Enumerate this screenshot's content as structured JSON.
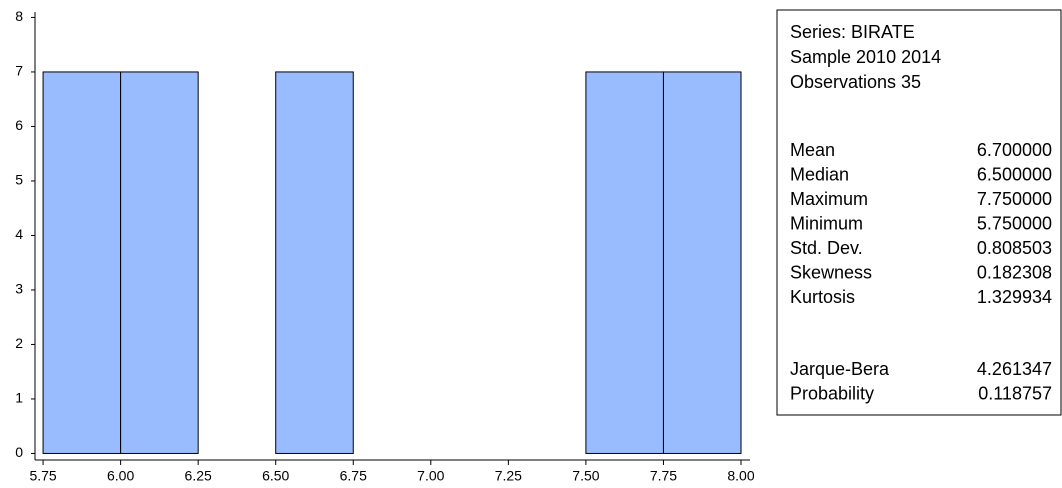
{
  "chart_data": {
    "type": "histogram",
    "bins": [
      5.75,
      6.0,
      6.25,
      6.5,
      6.75,
      7.0,
      7.25,
      7.5,
      7.75,
      8.0
    ],
    "values": [
      7,
      7,
      0,
      7,
      0,
      0,
      0,
      7,
      7
    ],
    "color": "#99bbff",
    "xlim": [
      5.724,
      8.029
    ],
    "ylim": [
      -0.12,
      8.1
    ],
    "xticks": [
      5.75,
      {
        "value": 6.0,
        "label": "6.00"
      },
      6.25,
      {
        "value": 6.5,
        "label": "6.50"
      },
      6.75,
      {
        "value": 7.0,
        "label": "7.00"
      },
      7.25,
      {
        "value": 7.5,
        "label": "7.50"
      },
      7.75,
      {
        "value": 8.0,
        "label": "8.00"
      }
    ],
    "yticks": [
      0,
      1,
      2,
      3,
      4,
      5,
      6,
      7,
      8
    ],
    "stats_header": [
      "Series: BIRATE",
      "Sample 2010 2014",
      "Observations 35"
    ],
    "stats": [
      [
        "Mean",
        "6.700000"
      ],
      [
        "Median",
        "6.500000"
      ],
      [
        "Maximum",
        "7.750000"
      ],
      [
        "Minimum",
        "5.750000"
      ],
      [
        "Std. Dev.",
        "0.808503"
      ],
      [
        "Skewness",
        "0.182308"
      ],
      [
        "Kurtosis",
        "1.329934"
      ]
    ],
    "tests": [
      [
        "Jarque-Bera",
        "4.261347"
      ],
      [
        "Probability",
        "0.118757"
      ]
    ]
  }
}
